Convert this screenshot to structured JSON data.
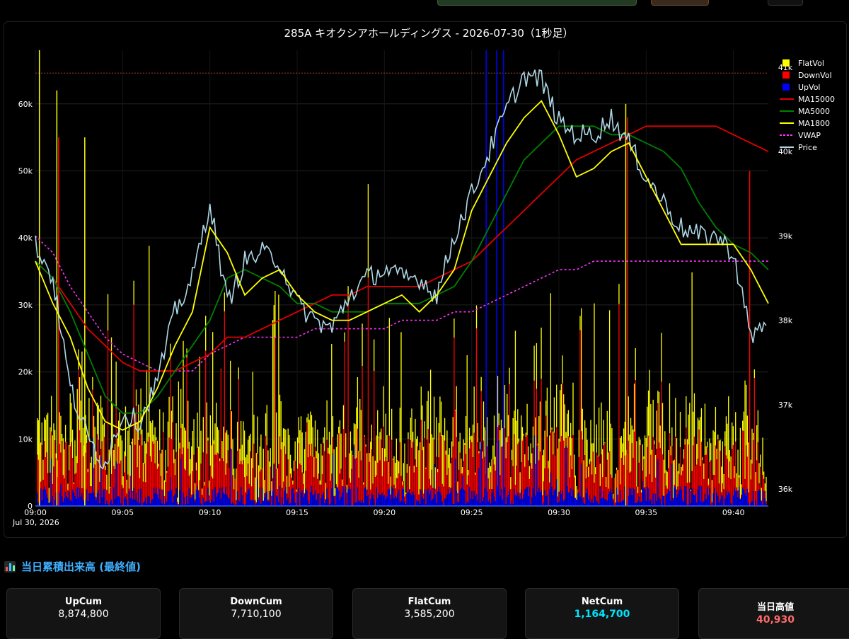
{
  "chart_data": {
    "type": "bar+line",
    "title": "285A キオクシアホールディングス - 2026-07-30（1秒足）",
    "x_ticks": [
      "09:00",
      "09:05",
      "09:10",
      "09:15",
      "09:20",
      "09:25",
      "09:30",
      "09:35",
      "09:40"
    ],
    "x_sub_label": "Jul 30, 2026",
    "x_range": [
      "09:00",
      "09:42"
    ],
    "y_left": {
      "ticks": [
        "0",
        "10k",
        "20k",
        "30k",
        "40k",
        "50k",
        "60k"
      ],
      "range": [
        0,
        68000
      ]
    },
    "y_right": {
      "ticks": [
        "36k",
        "37k",
        "38k",
        "39k",
        "40k",
        "41k"
      ],
      "range": [
        35800,
        41200
      ]
    },
    "day_high_line": 40930,
    "legend": [
      {
        "name": "FlatVol",
        "type": "bar",
        "color": "#ffff00"
      },
      {
        "name": "DownVol",
        "type": "bar",
        "color": "#ff0000"
      },
      {
        "name": "UpVol",
        "type": "bar",
        "color": "#0000ff"
      },
      {
        "name": "MA15000",
        "type": "line",
        "color": "#e00000"
      },
      {
        "name": "MA5000",
        "type": "line",
        "color": "#008000"
      },
      {
        "name": "MA1800",
        "type": "line",
        "color": "#ffff00"
      },
      {
        "name": "VWAP",
        "type": "dot",
        "color": "#ff33ff"
      },
      {
        "name": "Price",
        "type": "line",
        "color": "#add8e6"
      }
    ],
    "series_x_minutes": [
      0,
      1,
      2,
      3,
      4,
      5,
      6,
      7,
      8,
      9,
      10,
      11,
      12,
      13,
      14,
      15,
      16,
      17,
      18,
      19,
      20,
      21,
      22,
      23,
      24,
      25,
      26,
      27,
      28,
      29,
      30,
      31,
      32,
      33,
      34,
      35,
      36,
      37,
      38,
      39,
      40,
      41,
      42
    ],
    "price": [
      38900,
      38500,
      37200,
      36600,
      36300,
      36900,
      36800,
      37300,
      38100,
      38500,
      39400,
      38200,
      38700,
      38800,
      38700,
      38200,
      38000,
      37900,
      38300,
      38500,
      38600,
      38500,
      38500,
      38300,
      39000,
      39500,
      40000,
      40500,
      40900,
      40850,
      40350,
      40200,
      40200,
      40400,
      40100,
      39700,
      39400,
      39100,
      39000,
      39000,
      38800,
      37800,
      38000
    ],
    "ma1800": [
      38700,
      38200,
      37800,
      37200,
      36800,
      36700,
      36800,
      37200,
      37700,
      38100,
      39100,
      38800,
      38300,
      38500,
      38600,
      38300,
      38100,
      38000,
      38000,
      38100,
      38200,
      38300,
      38100,
      38300,
      38600,
      39300,
      39700,
      40100,
      40400,
      40600,
      40200,
      39700,
      39800,
      40000,
      40100,
      39700,
      39300,
      38900,
      38900,
      38900,
      38900,
      38600,
      38200
    ],
    "ma5000": [
      38700,
      38500,
      38100,
      37600,
      37100,
      36900,
      36900,
      37100,
      37400,
      37700,
      38000,
      38500,
      38600,
      38500,
      38400,
      38200,
      38200,
      38100,
      38100,
      38100,
      38200,
      38200,
      38200,
      38300,
      38400,
      38700,
      39100,
      39500,
      39900,
      40100,
      40300,
      40300,
      40300,
      40200,
      40200,
      40100,
      40000,
      39800,
      39400,
      39100,
      38900,
      38800,
      38600
    ],
    "ma15000": [
      38700,
      38500,
      38200,
      37900,
      37700,
      37500,
      37400,
      37400,
      37400,
      37500,
      37600,
      37800,
      37800,
      37900,
      38000,
      38100,
      38200,
      38300,
      38300,
      38400,
      38400,
      38400,
      38400,
      38500,
      38600,
      38700,
      38900,
      39100,
      39300,
      39500,
      39700,
      39900,
      40000,
      40100,
      40200,
      40300,
      40300,
      40300,
      40300,
      40300,
      40200,
      40100,
      40000
    ],
    "vwap": [
      39000,
      38800,
      38400,
      38100,
      37800,
      37600,
      37500,
      37400,
      37400,
      37400,
      37600,
      37700,
      37800,
      37800,
      37800,
      37800,
      37900,
      37900,
      37900,
      37900,
      37900,
      38000,
      38000,
      38000,
      38100,
      38100,
      38200,
      38300,
      38400,
      38500,
      38600,
      38600,
      38700,
      38700,
      38700,
      38700,
      38700,
      38700,
      38700,
      38700,
      38700,
      38700,
      38700
    ]
  },
  "summary": {
    "title": "当日累積出来高 (最終値)",
    "cards": [
      {
        "label": "UpCum",
        "value": "8,874,800",
        "color": "#ffffff"
      },
      {
        "label": "DownCum",
        "value": "7,710,100",
        "color": "#ffffff"
      },
      {
        "label": "FlatCum",
        "value": "3,585,200",
        "color": "#ffffff"
      },
      {
        "label": "NetCum",
        "value": "1,164,700",
        "color": "#00e5ff"
      },
      {
        "label": "当日高値",
        "value": "40,930",
        "color": "#ff6b6b"
      }
    ]
  }
}
